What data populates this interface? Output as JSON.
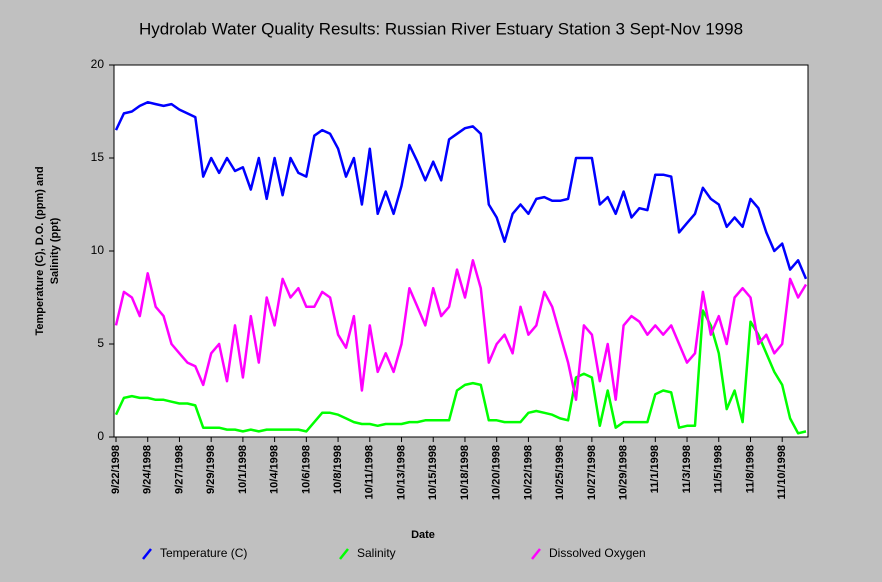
{
  "chart_data": {
    "type": "line",
    "title": "Hydrolab Water Quality Results: Russian River Estuary Station 3 Sept-Nov 1998",
    "x_label": "Date",
    "y_label": [
      "Temperature (C), D.O. (ppm) and",
      "Salinity (ppt)"
    ],
    "categories": [
      "9/22/1998",
      null,
      null,
      null,
      "9/24/1998",
      null,
      null,
      null,
      "9/27/1998",
      null,
      null,
      null,
      "9/29/1998",
      null,
      null,
      null,
      "10/1/1998",
      null,
      null,
      null,
      "10/4/1998",
      null,
      null,
      null,
      "10/6/1998",
      null,
      null,
      null,
      "10/8/1998",
      null,
      null,
      null,
      "10/11/1998",
      null,
      null,
      null,
      "10/13/1998",
      null,
      null,
      null,
      "10/15/1998",
      null,
      null,
      null,
      "10/18/1998",
      null,
      null,
      null,
      "10/20/1998",
      null,
      null,
      null,
      "10/22/1998",
      null,
      null,
      null,
      "10/25/1998",
      null,
      null,
      null,
      "10/27/1998",
      null,
      null,
      null,
      "10/29/1998",
      null,
      null,
      null,
      "11/1/1998",
      null,
      null,
      null,
      "11/3/1998",
      null,
      null,
      null,
      "11/5/1998",
      null,
      null,
      null,
      "11/8/1998",
      null,
      null,
      null,
      "11/10/1998",
      null,
      null,
      null
    ],
    "series": [
      {
        "name": "Temperature (C)",
        "color": "#0000ff",
        "values": [
          16.5,
          17.4,
          17.5,
          17.8,
          18.0,
          17.9,
          17.8,
          17.9,
          17.6,
          17.4,
          17.2,
          14.0,
          15.0,
          14.2,
          15.0,
          14.3,
          14.5,
          13.3,
          15.0,
          12.8,
          15.0,
          13.0,
          15.0,
          14.2,
          14.0,
          16.2,
          16.5,
          16.3,
          15.5,
          14.0,
          15.0,
          12.5,
          15.5,
          12.0,
          13.2,
          12.0,
          13.5,
          15.7,
          14.8,
          13.8,
          14.8,
          13.8,
          16.0,
          16.3,
          16.6,
          16.7,
          16.3,
          12.5,
          11.8,
          10.5,
          12.0,
          12.5,
          12.0,
          12.8,
          12.9,
          12.7,
          12.7,
          12.8,
          15.0,
          15.0,
          15.0,
          12.5,
          12.9,
          12.0,
          13.2,
          11.8,
          12.3,
          12.2,
          14.1,
          14.1,
          14.0,
          11.0,
          11.5,
          12.0,
          13.4,
          12.8,
          12.5,
          11.3,
          11.8,
          11.3,
          12.8,
          12.3,
          11.0,
          10.0,
          10.4,
          9.0,
          9.5,
          8.5
        ]
      },
      {
        "name": "Salinity",
        "color": "#00ff00",
        "values": [
          1.2,
          2.1,
          2.2,
          2.1,
          2.1,
          2.0,
          2.0,
          1.9,
          1.8,
          1.8,
          1.7,
          0.5,
          0.5,
          0.5,
          0.4,
          0.4,
          0.3,
          0.4,
          0.3,
          0.4,
          0.4,
          0.4,
          0.4,
          0.4,
          0.3,
          0.8,
          1.3,
          1.3,
          1.2,
          1.0,
          0.8,
          0.7,
          0.7,
          0.6,
          0.7,
          0.7,
          0.7,
          0.8,
          0.8,
          0.9,
          0.9,
          0.9,
          0.9,
          2.5,
          2.8,
          2.9,
          2.8,
          0.9,
          0.9,
          0.8,
          0.8,
          0.8,
          1.3,
          1.4,
          1.3,
          1.2,
          1.0,
          0.9,
          3.2,
          3.4,
          3.2,
          0.6,
          2.5,
          0.5,
          0.8,
          0.8,
          0.8,
          0.8,
          2.3,
          2.5,
          2.4,
          0.5,
          0.6,
          0.6,
          6.8,
          6.0,
          4.5,
          1.5,
          2.5,
          0.8,
          6.2,
          5.5,
          4.5,
          3.5,
          2.8,
          1.0,
          0.2,
          0.3
        ]
      },
      {
        "name": "Dissolved Oxygen",
        "color": "#ff00ff",
        "values": [
          6.0,
          7.8,
          7.5,
          6.5,
          8.8,
          7.0,
          6.5,
          5.0,
          4.5,
          4.0,
          3.8,
          2.8,
          4.5,
          5.0,
          3.0,
          6.0,
          3.2,
          6.5,
          4.0,
          7.5,
          6.0,
          8.5,
          7.5,
          8.0,
          7.0,
          7.0,
          7.8,
          7.5,
          5.5,
          4.8,
          6.5,
          2.5,
          6.0,
          3.5,
          4.5,
          3.5,
          5.0,
          8.0,
          7.0,
          6.0,
          8.0,
          6.5,
          7.0,
          9.0,
          7.5,
          9.5,
          8.0,
          4.0,
          5.0,
          5.5,
          4.5,
          7.0,
          5.5,
          6.0,
          7.8,
          7.0,
          5.5,
          4.0,
          2.0,
          6.0,
          5.5,
          3.0,
          5.0,
          2.0,
          6.0,
          6.5,
          6.2,
          5.5,
          6.0,
          5.5,
          6.0,
          5.0,
          4.0,
          4.5,
          7.8,
          5.5,
          6.5,
          5.0,
          7.5,
          8.0,
          7.5,
          5.0,
          5.5,
          4.5,
          5.0,
          8.5,
          7.5,
          8.2
        ]
      }
    ],
    "ylim": [
      0,
      20
    ],
    "yticks": [
      0,
      5,
      10,
      15,
      20
    ],
    "grid": false,
    "legend": "bottom"
  }
}
